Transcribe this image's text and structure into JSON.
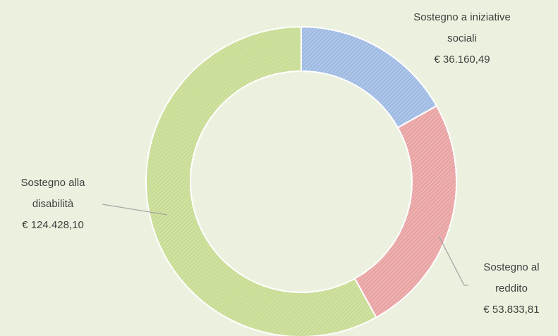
{
  "chart_data": {
    "type": "donut",
    "categories": [
      "Sostegno a iniziative sociali",
      "Sostegno al reddito",
      "Sostegno alla disabilità"
    ],
    "values": [
      36160.49,
      53833.81,
      124428.1
    ],
    "value_labels": [
      "€ 36.160,49",
      "€ 53.833,81",
      "€ 124.428,10"
    ],
    "colors": [
      "#9fbbe3",
      "#e9a3a3",
      "#c8dc93"
    ]
  }
}
